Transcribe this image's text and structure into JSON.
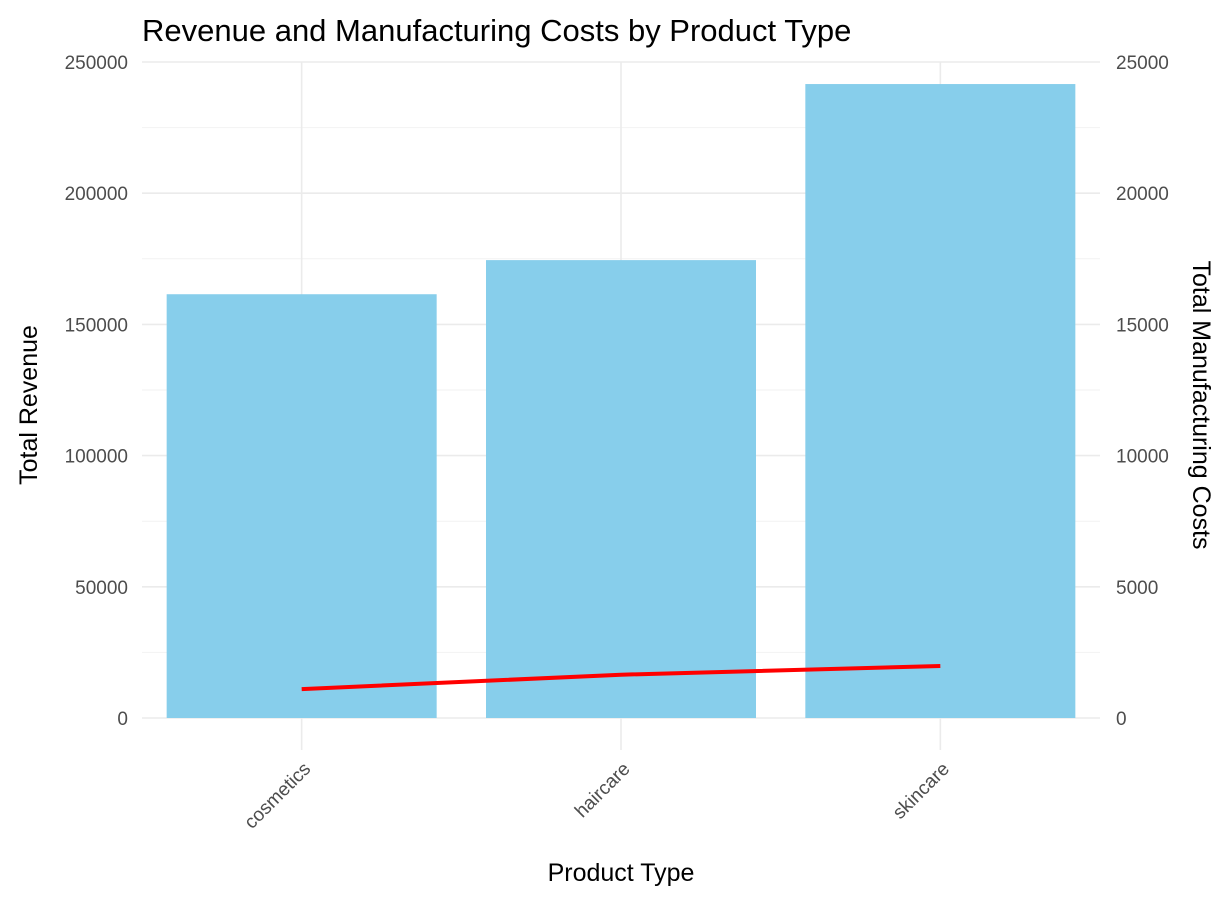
{
  "chart_data": {
    "type": "bar",
    "title": "Revenue and Manufacturing Costs by Product Type",
    "xlabel": "Product Type",
    "ylabel": "Total Revenue",
    "ylabel_right": "Total Manufacturing Costs",
    "categories": [
      "cosmetics",
      "haircare",
      "skincare"
    ],
    "series": [
      {
        "name": "Total Revenue",
        "type": "bar",
        "axis": "left",
        "color": "#87CEEB",
        "values": [
          161500,
          174500,
          241600
        ]
      },
      {
        "name": "Total Manufacturing Costs",
        "type": "line",
        "axis": "right",
        "color": "#FF0000",
        "values": [
          1100,
          1650,
          1980
        ]
      }
    ],
    "ylim": [
      0,
      250000
    ],
    "ylim_right": [
      0,
      25000
    ],
    "yticks": [
      0,
      50000,
      100000,
      150000,
      200000,
      250000
    ],
    "yticks_right": [
      0,
      5000,
      10000,
      15000,
      20000,
      25000
    ],
    "grid": true,
    "legend": "none",
    "x_tick_rotation": 45
  }
}
